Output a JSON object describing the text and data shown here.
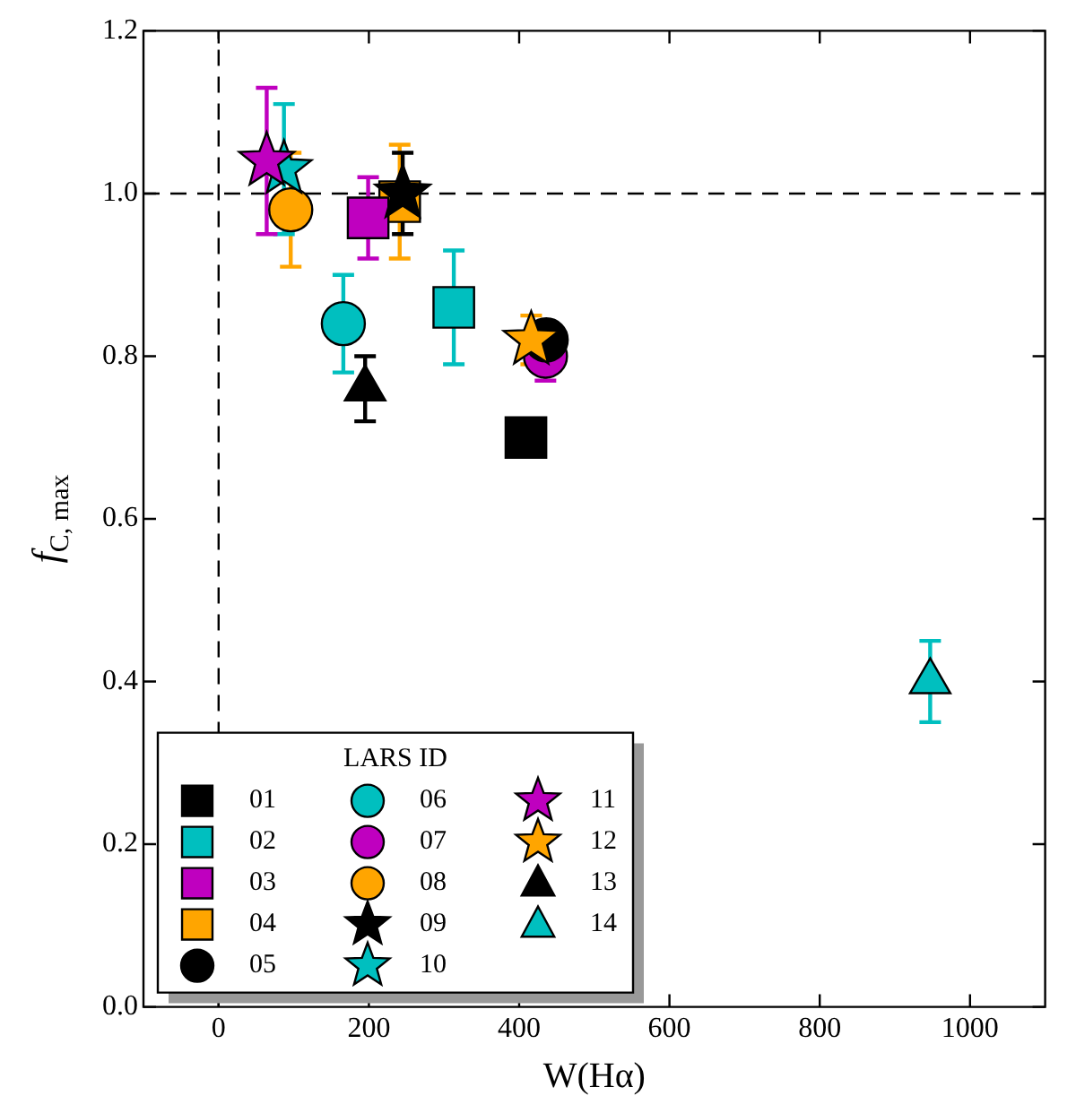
{
  "chart_data": {
    "type": "scatter",
    "xlabel": "W(Hα)",
    "ylabel": "f$_{C, max}$",
    "legend_title": "LARS ID",
    "legend": "bottom left",
    "xlim": [
      -100,
      1100
    ],
    "xticks": [
      0,
      200,
      400,
      600,
      800,
      1000
    ],
    "ylim": [
      0,
      1.2
    ],
    "yticks": [
      {
        "value": 0,
        "label": "0.0"
      },
      0.2,
      0.4,
      0.6,
      0.8,
      {
        "value": 1,
        "label": "1.0"
      },
      1.2
    ],
    "grid": false,
    "ref_lines": [
      {
        "axis": "y",
        "value": 1,
        "line_style": "dashed",
        "color": "#000000"
      },
      {
        "axis": "x",
        "value": 0,
        "line_style": "dashed",
        "color": "#000000"
      }
    ],
    "series": [
      {
        "name": "01",
        "color": "#000000",
        "marker": "square",
        "x": [
          409
        ],
        "values": [
          0.7
        ]
      },
      {
        "name": "02",
        "color": "#00bfbf",
        "marker": "square",
        "x": [
          313
        ],
        "values": [
          0.86
        ],
        "errors": [
          0.07
        ]
      },
      {
        "name": "03",
        "color": "#bf00bf",
        "marker": "square",
        "x": [
          199
        ],
        "values": [
          0.97
        ],
        "errors": [
          0.05
        ]
      },
      {
        "name": "04",
        "color": "#ffa500",
        "marker": "square",
        "x": [
          241
        ],
        "values": [
          0.99
        ],
        "errors": [
          0.07
        ]
      },
      {
        "name": "05",
        "color": "#000000",
        "marker": "circle",
        "x": [
          436
        ],
        "values": [
          0.82
        ]
      },
      {
        "name": "06",
        "color": "#00bfbf",
        "marker": "circle",
        "x": [
          166
        ],
        "values": [
          0.84
        ],
        "errors": [
          0.06
        ]
      },
      {
        "name": "07",
        "color": "#bf00bf",
        "marker": "circle",
        "x": [
          435
        ],
        "values": [
          0.8
        ],
        "errors": [
          0.03
        ]
      },
      {
        "name": "08",
        "color": "#ffa500",
        "marker": "circle",
        "x": [
          96
        ],
        "values": [
          0.98
        ],
        "errors": [
          0.07
        ]
      },
      {
        "name": "09",
        "color": "#000000",
        "marker": "star",
        "x": [
          245
        ],
        "values": [
          1.0
        ],
        "errors": [
          0.05
        ]
      },
      {
        "name": "10",
        "color": "#00bfbf",
        "marker": "star",
        "x": [
          87
        ],
        "values": [
          1.03
        ],
        "errors": [
          0.08
        ]
      },
      {
        "name": "11",
        "color": "#bf00bf",
        "marker": "star",
        "x": [
          64
        ],
        "values": [
          1.04
        ],
        "errors": [
          0.09
        ]
      },
      {
        "name": "12",
        "color": "#ffa500",
        "marker": "star",
        "x": [
          416
        ],
        "values": [
          0.82
        ],
        "errors": [
          0.03
        ]
      },
      {
        "name": "13",
        "color": "#000000",
        "marker": "triangle",
        "x": [
          195
        ],
        "values": [
          0.76
        ],
        "errors": [
          0.04
        ]
      },
      {
        "name": "14",
        "color": "#00bfbf",
        "marker": "triangle",
        "x": [
          947
        ],
        "values": [
          0.4
        ],
        "errors": [
          0.05
        ]
      }
    ]
  }
}
